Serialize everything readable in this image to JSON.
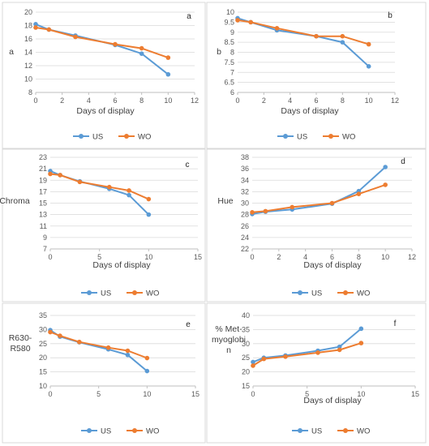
{
  "colors": {
    "US": "#5b9bd5",
    "WO": "#ed7d31"
  },
  "chart_data": [
    {
      "type": "line",
      "panel": "a",
      "xlabel": "Days of display",
      "ylabel": "a",
      "xlim": [
        0,
        12
      ],
      "xticks": [
        0,
        2,
        4,
        6,
        8,
        10,
        12
      ],
      "ylim": [
        8,
        20
      ],
      "yticks": [
        8,
        10,
        12,
        14,
        16,
        18,
        20
      ],
      "grid": "horizontal",
      "legend": "bottom",
      "x": [
        0,
        1,
        3,
        6,
        8,
        10
      ],
      "series": [
        {
          "name": "US",
          "values": [
            18.2,
            17.4,
            16.5,
            15.1,
            13.8,
            10.7
          ]
        },
        {
          "name": "WO",
          "values": [
            17.7,
            17.4,
            16.3,
            15.2,
            14.6,
            13.2
          ]
        }
      ]
    },
    {
      "type": "line",
      "panel": "b",
      "xlabel": "Days of display",
      "ylabel": "b",
      "xlim": [
        0,
        12
      ],
      "xticks": [
        0,
        2,
        4,
        6,
        8,
        10,
        12
      ],
      "ylim": [
        6,
        10
      ],
      "yticks": [
        6,
        6.5,
        7,
        7.5,
        8,
        8.5,
        9,
        9.5,
        10
      ],
      "grid": "horizontal",
      "legend": "bottom",
      "x": [
        0,
        1,
        3,
        6,
        8,
        10
      ],
      "series": [
        {
          "name": "US",
          "values": [
            9.7,
            9.5,
            9.1,
            8.8,
            8.5,
            7.3
          ]
        },
        {
          "name": "WO",
          "values": [
            9.6,
            9.5,
            9.2,
            8.8,
            8.8,
            8.4
          ]
        }
      ]
    },
    {
      "type": "line",
      "panel": "c",
      "xlabel": "Days of display",
      "ylabel": "Chroma",
      "xlim": [
        0,
        15
      ],
      "xticks": [
        0,
        5,
        10,
        15
      ],
      "ylim": [
        7,
        23
      ],
      "yticks": [
        7,
        9,
        11,
        13,
        15,
        17,
        19,
        21,
        23
      ],
      "grid": "horizontal",
      "legend": "bottom",
      "x": [
        0,
        1,
        3,
        6,
        8,
        10
      ],
      "series": [
        {
          "name": "US",
          "values": [
            20.6,
            19.9,
            18.8,
            17.5,
            16.4,
            13.0
          ]
        },
        {
          "name": "WO",
          "values": [
            20.1,
            19.9,
            18.7,
            17.8,
            17.2,
            15.7
          ]
        }
      ]
    },
    {
      "type": "line",
      "panel": "d",
      "xlabel": "Days of display",
      "ylabel": "Hue",
      "xlim": [
        0,
        12
      ],
      "xticks": [
        0,
        2,
        4,
        6,
        8,
        10,
        12
      ],
      "ylim": [
        22,
        38
      ],
      "yticks": [
        22,
        24,
        26,
        28,
        30,
        32,
        34,
        36,
        38
      ],
      "grid": "horizontal",
      "legend": "bottom",
      "x": [
        0,
        1,
        3,
        6,
        8,
        10
      ],
      "series": [
        {
          "name": "US",
          "values": [
            28.1,
            28.5,
            28.9,
            29.9,
            32.1,
            36.3
          ]
        },
        {
          "name": "WO",
          "values": [
            28.4,
            28.6,
            29.3,
            30.0,
            31.6,
            33.2
          ]
        }
      ]
    },
    {
      "type": "line",
      "panel": "e",
      "xlabel": "",
      "ylabel": "R630-\nR580",
      "xlim": [
        0,
        15
      ],
      "xticks": [
        0,
        5,
        10,
        15
      ],
      "ylim": [
        10,
        35
      ],
      "yticks": [
        10,
        15,
        20,
        25,
        30,
        35
      ],
      "grid": "horizontal",
      "legend": "bottom",
      "x": [
        0,
        1,
        3,
        6,
        8,
        10
      ],
      "series": [
        {
          "name": "US",
          "values": [
            29.8,
            27.5,
            25.5,
            23.0,
            21.0,
            15.3
          ]
        },
        {
          "name": "WO",
          "values": [
            29.1,
            27.8,
            25.6,
            23.6,
            22.5,
            19.9
          ]
        }
      ]
    },
    {
      "type": "line",
      "panel": "f",
      "xlabel": "Days of display",
      "ylabel": "% Met-\nmyoglobi\nn",
      "xlim": [
        0,
        15
      ],
      "xticks": [
        0,
        5,
        10,
        15
      ],
      "ylim": [
        15,
        40
      ],
      "yticks": [
        15,
        20,
        25,
        30,
        35,
        40
      ],
      "grid": "horizontal",
      "legend": "bottom",
      "x": [
        0,
        1,
        3,
        6,
        8,
        10
      ],
      "series": [
        {
          "name": "US",
          "values": [
            23.5,
            25.0,
            25.8,
            27.5,
            28.9,
            35.3
          ]
        },
        {
          "name": "WO",
          "values": [
            22.2,
            24.6,
            25.4,
            26.8,
            27.8,
            30.2
          ]
        }
      ]
    }
  ]
}
